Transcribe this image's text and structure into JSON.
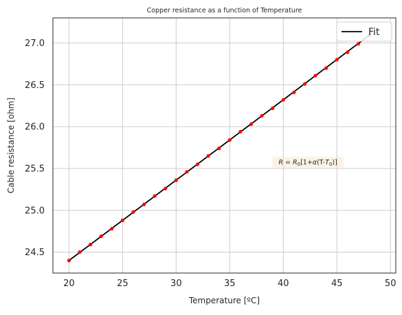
{
  "chart_data": {
    "type": "line",
    "title": "Copper resistance as a function of Temperature",
    "xlabel": "Temperature [ºC]",
    "ylabel": "Cable resistance [ohm]",
    "xlim": [
      18.5,
      50.5
    ],
    "ylim": [
      24.25,
      27.3
    ],
    "xticks": [
      20,
      25,
      30,
      35,
      40,
      45,
      50
    ],
    "yticks": [
      24.5,
      25.0,
      25.5,
      26.0,
      26.5,
      27.0
    ],
    "xtick_labels": [
      "20",
      "25",
      "30",
      "35",
      "40",
      "45",
      "50"
    ],
    "ytick_labels": [
      "24.5",
      "25.0",
      "25.5",
      "26.0",
      "26.5",
      "27.0"
    ],
    "grid": true,
    "legend_position": "top-right",
    "series": [
      {
        "name": "Fit",
        "kind": "line",
        "color": "#000000",
        "x": [
          20,
          48
        ],
        "y": [
          24.4,
          27.09
        ]
      },
      {
        "kind": "scatter",
        "color": "#ff0000",
        "x": [
          20,
          21,
          22,
          23,
          24,
          25,
          26,
          27,
          28,
          29,
          30,
          31,
          32,
          33,
          34,
          35,
          36,
          37,
          38,
          39,
          40,
          41,
          42,
          43,
          44,
          45,
          46,
          47,
          48
        ],
        "y": [
          24.4,
          24.5,
          24.59,
          24.69,
          24.78,
          24.88,
          24.98,
          25.07,
          25.17,
          25.26,
          25.36,
          25.46,
          25.55,
          25.65,
          25.74,
          25.84,
          25.94,
          26.03,
          26.13,
          26.22,
          26.32,
          26.41,
          26.51,
          26.61,
          26.7,
          26.8,
          26.89,
          26.99,
          27.09
        ]
      }
    ],
    "annotation": {
      "text": "R = R0[1+α(T-T0)]",
      "x": 42.3,
      "y": 25.55
    }
  }
}
